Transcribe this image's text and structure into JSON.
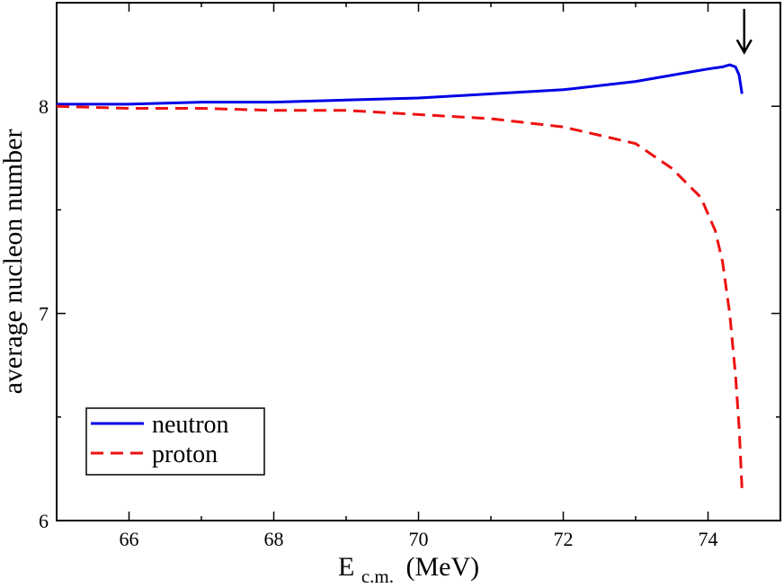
{
  "chart_data": {
    "type": "line",
    "title": "",
    "xlabel_main": "E",
    "xlabel_sub": "c.m.",
    "xlabel_unit": "(MeV)",
    "ylabel": "average nucleon number",
    "xlim": [
      65,
      75
    ],
    "ylim": [
      6,
      8.5
    ],
    "xticks": [
      66,
      68,
      70,
      72,
      74
    ],
    "xtick_labels": [
      "66",
      "68",
      "70",
      "72",
      "74"
    ],
    "yticks": [
      6,
      7,
      8
    ],
    "ytick_labels": [
      "6",
      "7",
      "8"
    ],
    "legend_position": "bottom-left",
    "series": [
      {
        "name": "neutron",
        "color": "#0000e6",
        "style": "solid",
        "x": [
          65,
          66,
          67,
          68,
          69,
          70,
          71,
          72,
          73,
          73.5,
          74,
          74.2,
          74.3,
          74.38,
          74.43,
          74.47
        ],
        "y": [
          8.01,
          8.01,
          8.02,
          8.02,
          8.03,
          8.04,
          8.06,
          8.08,
          8.12,
          8.15,
          8.18,
          8.19,
          8.2,
          8.19,
          8.15,
          8.06
        ]
      },
      {
        "name": "proton",
        "color": "#ee1111",
        "style": "dashed",
        "x": [
          65,
          66,
          67,
          68,
          69,
          70,
          71,
          72,
          73,
          73.5,
          73.9,
          74.1,
          74.2,
          74.3,
          74.38,
          74.43,
          74.47
        ],
        "y": [
          8.0,
          7.99,
          7.99,
          7.98,
          7.98,
          7.96,
          7.94,
          7.9,
          7.82,
          7.7,
          7.56,
          7.4,
          7.25,
          7.0,
          6.7,
          6.45,
          6.15
        ]
      }
    ],
    "annotations": [
      {
        "type": "arrow",
        "direction": "down",
        "x": 74.5,
        "y_from": 8.47,
        "y_to": 8.26,
        "color": "#000000"
      }
    ]
  }
}
